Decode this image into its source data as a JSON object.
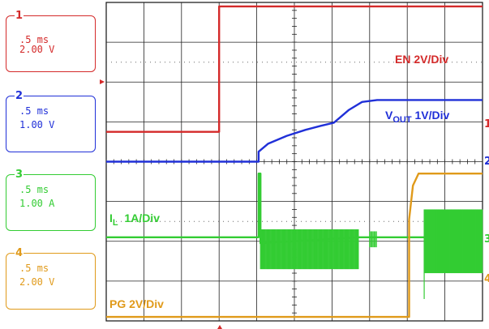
{
  "channels": [
    {
      "num": "1",
      "time": ".5 ms",
      "scale": "2.00 V",
      "color": "#d42a2a",
      "edge_marker": "1"
    },
    {
      "num": "2",
      "time": ".5 ms",
      "scale": "1.00 V",
      "color": "#2030d8",
      "edge_marker": "2"
    },
    {
      "num": "3",
      "time": ".5 ms",
      "scale": "1.00 A",
      "color": "#33cc33",
      "edge_marker": "3"
    },
    {
      "num": "4",
      "time": ".5 ms",
      "scale": "2.00 V",
      "color": "#e09a1a",
      "edge_marker": "4"
    }
  ],
  "labels": {
    "en": "EN 2V/Div",
    "vout_main": "V",
    "vout_sub": "OUT",
    "vout_tail": " 1V/Div",
    "il_main": "I",
    "il_sub": "L",
    "il_tail": "  1A/Div",
    "pg": "PG 2V/Div"
  },
  "chart_data": {
    "type": "line",
    "title": "",
    "xlabel": "",
    "ylabel": "",
    "x_divisions": 10,
    "y_divisions": 8,
    "grid": true,
    "series": [
      {
        "name": "EN 2V/Div",
        "color": "#d42a2a",
        "x": [
          0,
          3.0,
          3.0,
          10
        ],
        "y": [
          4.75,
          4.75,
          7.9,
          7.9
        ]
      },
      {
        "name": "VOUT 1V/Div",
        "color": "#2030d8",
        "x": [
          0,
          4.05,
          4.05,
          4.3,
          4.8,
          5.3,
          5.7,
          6.05,
          6.45,
          6.8,
          7.2,
          10
        ],
        "y": [
          4.0,
          4.0,
          4.25,
          4.45,
          4.65,
          4.8,
          4.9,
          4.98,
          5.3,
          5.5,
          5.55,
          5.55
        ]
      },
      {
        "name": "IL 1A/Div",
        "color": "#33cc33",
        "x": [
          0,
          4.05,
          4.05,
          4.1,
          4.1,
          6.7,
          10
        ],
        "y": [
          2.1,
          2.1,
          3.7,
          3.7,
          1.95,
          2.1,
          2.1
        ]
      },
      {
        "name": "PG 2V/Div",
        "color": "#e09a1a",
        "x": [
          0,
          8.05,
          8.05,
          8.15,
          8.3,
          10
        ],
        "y": [
          0.1,
          0.1,
          2.55,
          3.4,
          3.7,
          3.7
        ]
      }
    ]
  }
}
